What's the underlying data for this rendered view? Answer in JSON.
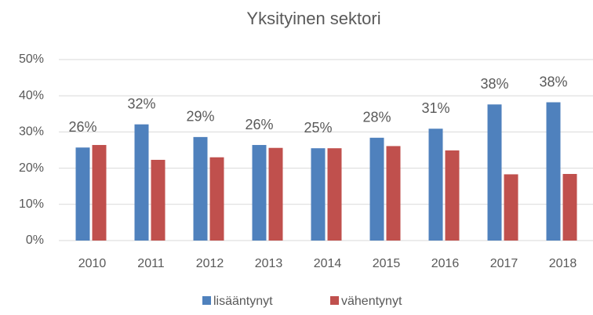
{
  "chart_data": {
    "type": "bar",
    "title": "Yksityinen sektori",
    "categories": [
      "2010",
      "2011",
      "2012",
      "2013",
      "2014",
      "2015",
      "2016",
      "2017",
      "2018"
    ],
    "series": [
      {
        "name": "lisääntynyt",
        "color": "#4f81bd",
        "values": [
          25.7,
          32.1,
          28.6,
          26.4,
          25.5,
          28.4,
          30.9,
          37.6,
          38.2
        ],
        "value_labels": [
          "26%",
          "32%",
          "29%",
          "26%",
          "25%",
          "28%",
          "31%",
          "38%",
          "38%"
        ]
      },
      {
        "name": "vähentynyt",
        "color": "#c0504d",
        "values": [
          26.4,
          22.3,
          23.0,
          25.6,
          25.5,
          26.1,
          24.9,
          18.3,
          18.4
        ]
      }
    ],
    "ylim": [
      0,
      50
    ],
    "yticks": [
      {
        "value": 0,
        "label": "0%"
      },
      {
        "value": 10,
        "label": "10%"
      },
      {
        "value": 20,
        "label": "20%"
      },
      {
        "value": 30,
        "label": "30%"
      },
      {
        "value": 40,
        "label": "40%"
      },
      {
        "value": 50,
        "label": "50%"
      }
    ],
    "grid": true,
    "legend": "bottom"
  }
}
